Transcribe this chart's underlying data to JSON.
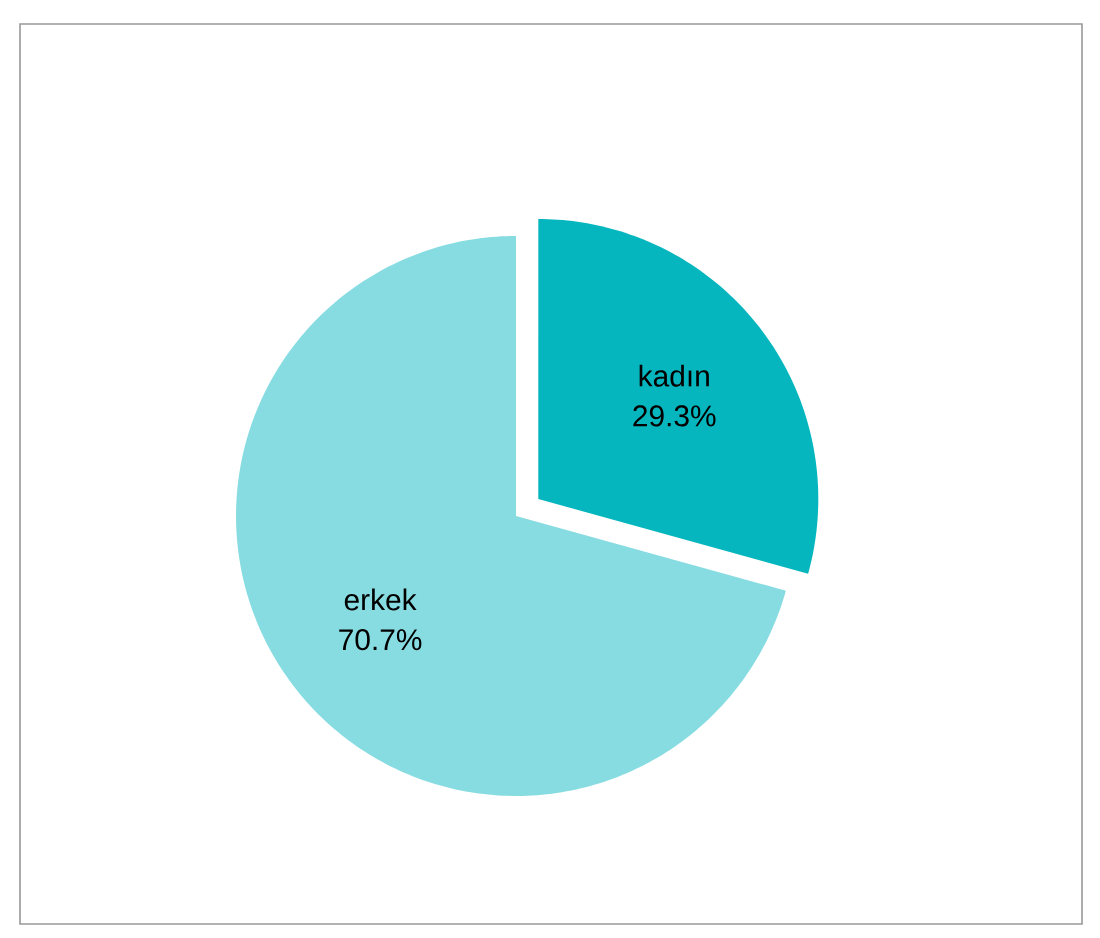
{
  "chart_data": {
    "type": "pie",
    "categories": [
      "kadın",
      "erkek"
    ],
    "values": [
      29.3,
      70.7
    ],
    "colors": [
      "#06b6bf",
      "#87dce2"
    ],
    "value_labels": [
      "29.3%",
      "70.7%"
    ]
  }
}
